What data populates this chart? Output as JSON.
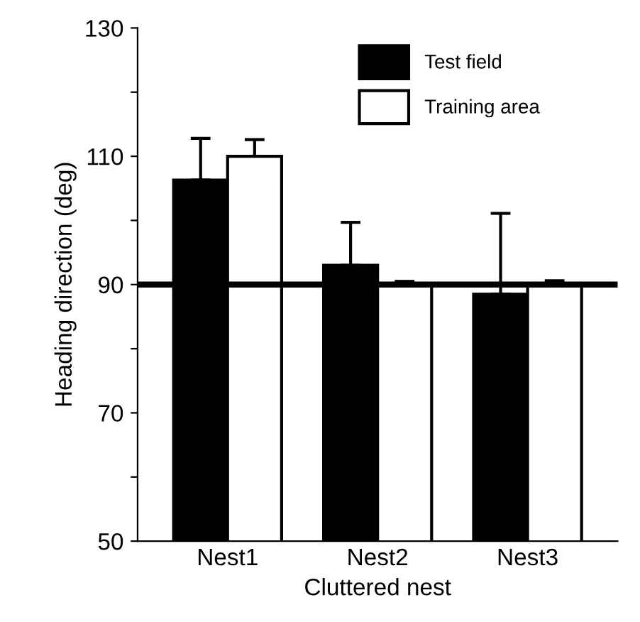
{
  "chart_data": {
    "type": "bar",
    "xlabel": "Cluttered nest",
    "ylabel": "Heading direction (deg)",
    "categories": [
      "Nest1",
      "Nest2",
      "Nest3"
    ],
    "series": [
      {
        "name": "Test field",
        "color": "#000000",
        "values": [
          106.3,
          93,
          88.5
        ],
        "errors": [
          [
            106.3,
            112.8
          ],
          [
            93,
            99.7
          ],
          [
            88.5,
            101.1
          ]
        ]
      },
      {
        "name": "Training area",
        "color": "#ffffff",
        "values": [
          110,
          90,
          90
        ],
        "errors": [
          [
            110,
            112.6
          ],
          [
            90,
            90.5
          ],
          [
            90,
            90.6
          ]
        ]
      }
    ],
    "ylim": [
      50,
      130
    ],
    "yticks": [
      50,
      {
        "value": 60,
        "label": null
      },
      70,
      {
        "value": 80,
        "label": null
      },
      90,
      {
        "value": 100,
        "label": null
      },
      110,
      {
        "value": 120,
        "label": null
      },
      130
    ],
    "ref_lines": [
      {
        "axis": "y",
        "value": 90,
        "color": "#000000"
      }
    ],
    "legend": "top",
    "grid": false
  }
}
